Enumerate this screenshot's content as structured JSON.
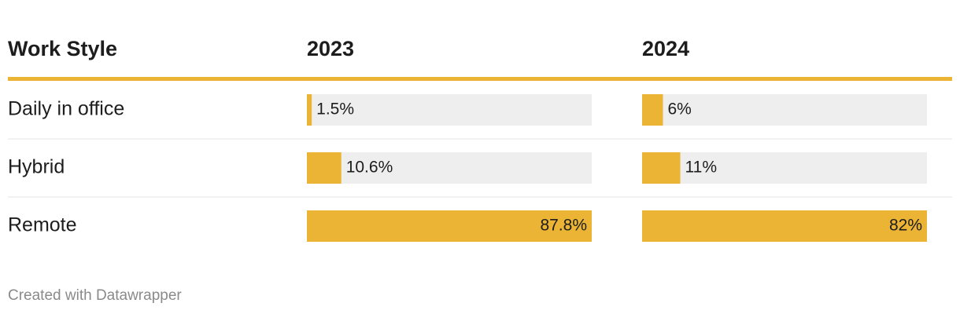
{
  "chart_data": {
    "type": "bar",
    "header": "Work Style",
    "categories": [
      "Daily in office",
      "Hybrid",
      "Remote"
    ],
    "series": [
      {
        "name": "2023",
        "color": "#ebb434",
        "values": [
          1.5,
          10.6,
          87.8
        ],
        "value_labels": [
          "1.5%",
          "10.6%",
          "87.8%"
        ],
        "xlim": [
          0,
          87.8
        ]
      },
      {
        "name": "2024",
        "color": "#ebb434",
        "values": [
          6,
          11,
          82
        ],
        "value_labels": [
          "6%",
          "11%",
          "82%"
        ],
        "xlim": [
          0,
          82
        ]
      }
    ]
  },
  "footer": "Created with Datawrapper"
}
